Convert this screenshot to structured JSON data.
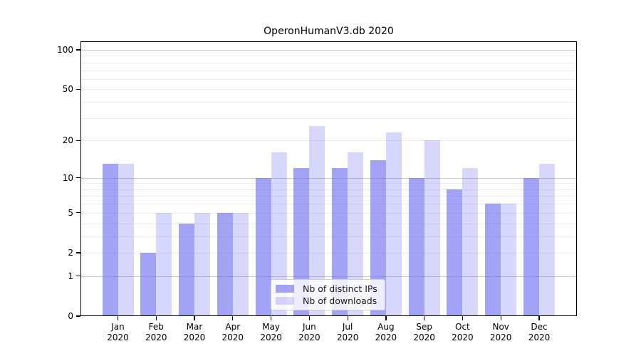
{
  "chart_data": {
    "type": "bar",
    "title": "OperonHumanV3.db 2020",
    "categories": [
      "Jan 2020",
      "Feb 2020",
      "Mar 2020",
      "Apr 2020",
      "May 2020",
      "Jun 2020",
      "Jul 2020",
      "Aug 2020",
      "Sep 2020",
      "Oct 2020",
      "Nov 2020",
      "Dec 2020"
    ],
    "series": [
      {
        "name": "Nb of distinct IPs",
        "color": "rgba(102,102,238,0.6)",
        "values": [
          13,
          2,
          4,
          5,
          10,
          12,
          12,
          14,
          10,
          8,
          6,
          10
        ]
      },
      {
        "name": "Nb of downloads",
        "color": "rgba(102,102,238,0.26)",
        "values": [
          13,
          5,
          5,
          5,
          16,
          26,
          16,
          23,
          20,
          12,
          6,
          13
        ]
      }
    ],
    "xlabel": "",
    "ylabel": "",
    "y_scale": "log-like: position proportional to log10(1+value), so 0 is on the axis",
    "ylim": [
      0,
      116
    ],
    "y_ticks": [
      0,
      1,
      2,
      5,
      10,
      20,
      50,
      100
    ],
    "grid": {
      "major_values": [
        1,
        10,
        100
      ],
      "minor_values": [
        2,
        3,
        4,
        5,
        6,
        7,
        8,
        9,
        20,
        30,
        40,
        50,
        60,
        70,
        80,
        90
      ],
      "major_color": "#c8c8c8",
      "minor_color": "#ebebeb"
    },
    "legend": {
      "position": "lower center"
    }
  },
  "colors": {
    "bar_distinct_ips": "rgba(102,102,238,0.6)",
    "bar_downloads": "rgba(102,102,238,0.26)",
    "axis": "#000000",
    "background": "#ffffff"
  }
}
